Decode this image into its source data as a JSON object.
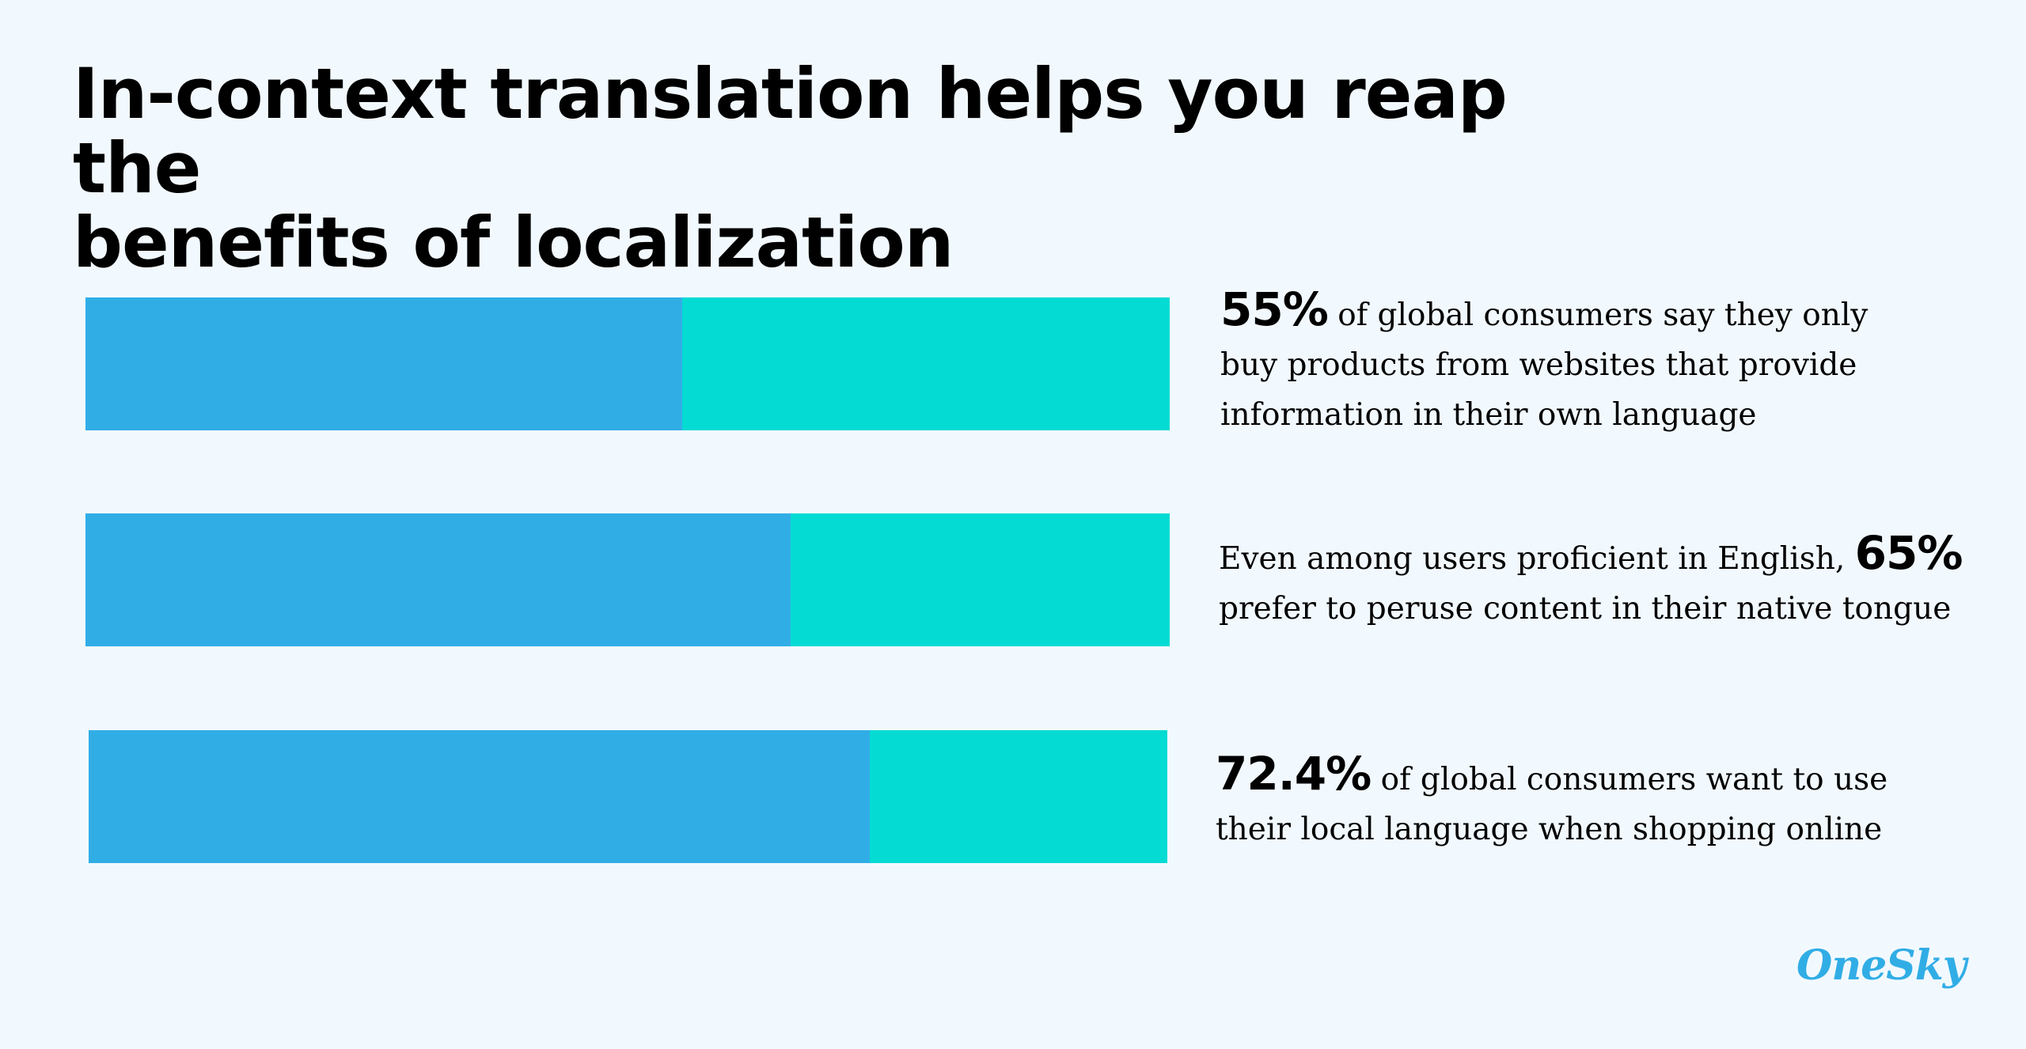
{
  "title": {
    "line1": "In-context translation helps you reap the",
    "line2": "benefits of localization"
  },
  "colors": {
    "background": "#f2f9fe",
    "bar_primary": "#31ade6",
    "bar_secondary": "#03dbd3",
    "logo": "#31ade6",
    "text": "#000000"
  },
  "chart_data": {
    "type": "bar",
    "orientation": "horizontal",
    "stacked": true,
    "categories": [
      "55% of global consumers say they only buy products from websites that provide information in their own language",
      "Even among users proficient in English, 65% prefer to peruse content in their native tongue",
      "72.4% of global consumers want to use their local language when shopping online"
    ],
    "series": [
      {
        "values": [
          55,
          65,
          72.4
        ]
      },
      {
        "values": [
          45,
          35,
          27.6
        ]
      }
    ],
    "xlim": [
      0,
      100
    ],
    "grid": false,
    "axes_visible": false
  },
  "stats": [
    {
      "pct": "55%",
      "line1_after": " of global consumers say they only",
      "line2": "buy products from websites that provide",
      "line3": "information in their own language"
    },
    {
      "line1_before": "Even among users proficient in English, ",
      "pct": "65%",
      "line2": "prefer to peruse content in their native tongue"
    },
    {
      "pct": "72.4%",
      "line1_after": " of global consumers want to use",
      "line2": "their local language when shopping online"
    }
  ],
  "logo": {
    "text": "OneSky"
  }
}
